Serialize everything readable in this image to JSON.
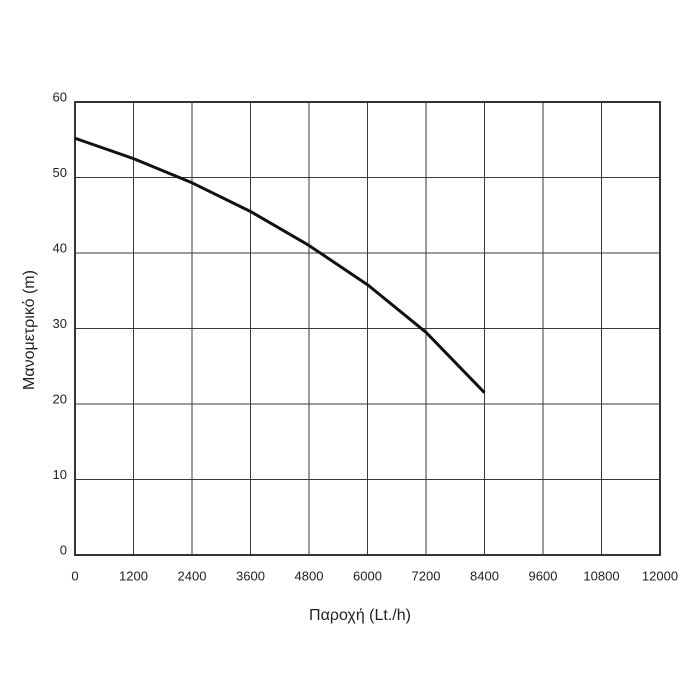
{
  "chart_data": {
    "type": "line",
    "x_label": "Παροχή (Lt./h)",
    "y_label": "Μανομετρικό  (m)",
    "x": [
      0,
      1200,
      2400,
      3600,
      4800,
      6000,
      7200,
      8400
    ],
    "series": [
      {
        "color": "#111111",
        "values": [
          55.2,
          52.5,
          49.3,
          45.5,
          41,
          35.8,
          29.5,
          21.5
        ]
      }
    ],
    "xlim": [
      0,
      12000
    ],
    "xticks": [
      0,
      1200,
      2400,
      3600,
      4800,
      6000,
      7200,
      8400,
      9600,
      10800,
      12000
    ],
    "ylim": [
      0,
      60
    ],
    "yticks": [
      0,
      10,
      20,
      30,
      40,
      50,
      60
    ],
    "grid": true
  }
}
